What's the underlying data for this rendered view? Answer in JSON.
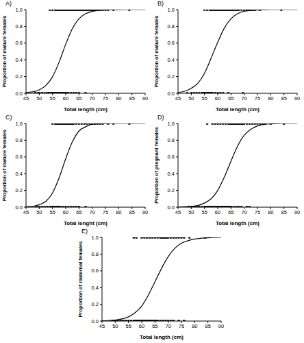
{
  "chart_data": [
    {
      "type": "scatter",
      "title": "A)",
      "x_label": "Total length (cm)",
      "y_label": "Proportion of mature females",
      "xlim": [
        45,
        90
      ],
      "xticks": [
        45,
        50,
        55,
        60,
        65,
        70,
        75,
        80,
        85,
        90
      ],
      "ylim": [
        0,
        1
      ],
      "yticks": [
        {
          "value": 0,
          "label": "0.0"
        },
        {
          "value": 0.2,
          "label": "0.2"
        },
        {
          "value": 0.4,
          "label": "0.4"
        },
        {
          "value": 0.6,
          "label": "0.6"
        },
        {
          "value": 0.8,
          "label": "0.8"
        },
        {
          "value": 1,
          "label": "1.0"
        }
      ],
      "grid": false,
      "points": {
        "color": "#000000",
        "marker": "circle",
        "groups": [
          {
            "y": 0,
            "x": [
              48.5,
              49.5,
              50,
              51,
              52,
              53,
              53.5,
              54,
              54.5,
              55,
              55.5,
              56,
              56.5,
              57,
              57.5,
              58,
              58.5,
              59,
              59.5,
              60,
              60.5,
              61,
              62,
              63,
              64,
              65,
              67.5
            ]
          },
          {
            "y": 1,
            "x": [
              54,
              55,
              56,
              56.5,
              57,
              57.5,
              58,
              58.5,
              59,
              59.5,
              60,
              60.5,
              61,
              61.5,
              62,
              62.5,
              63,
              63.5,
              64,
              64.5,
              65,
              65.5,
              66,
              66.5,
              67,
              67.5,
              68,
              68.5,
              69,
              69.5,
              70,
              70.5,
              71,
              72,
              73,
              74,
              75,
              76,
              78,
              84
            ]
          }
        ]
      },
      "curve": {
        "type": "line",
        "color": "#000000",
        "line_style": "solid",
        "x": [
          45,
          47.5,
          50,
          52.5,
          55,
          57.5,
          60,
          62.5,
          65,
          67.5,
          70,
          72.5,
          75,
          77.5,
          80,
          85,
          90
        ],
        "values": [
          0.01,
          0.017,
          0.041,
          0.093,
          0.198,
          0.372,
          0.587,
          0.773,
          0.891,
          0.951,
          0.979,
          0.991,
          0.996,
          0.998,
          0.999,
          1,
          1
        ]
      }
    },
    {
      "type": "scatter",
      "title": "B)",
      "x_label": "Total length (cm)",
      "y_label": "Proportion of mature females",
      "xlim": [
        45,
        90
      ],
      "xticks": [
        45,
        50,
        55,
        60,
        65,
        70,
        75,
        80,
        85,
        90
      ],
      "ylim": [
        0,
        1
      ],
      "yticks": [
        {
          "value": 0,
          "label": "0.0"
        },
        {
          "value": 0.2,
          "label": "0.2"
        },
        {
          "value": 0.4,
          "label": "0.4"
        },
        {
          "value": 0.6,
          "label": "0.6"
        },
        {
          "value": 0.8,
          "label": "0.8"
        },
        {
          "value": 1,
          "label": "1.0"
        }
      ],
      "grid": false,
      "points": {
        "color": "#000000",
        "marker": "circle",
        "groups": [
          {
            "y": 0,
            "x": [
              48.5,
              50,
              51,
              52,
              53,
              54,
              54.5,
              55,
              55.5,
              56,
              56.5,
              57,
              57.5,
              58,
              59,
              60,
              61,
              62,
              64,
              69.5
            ]
          },
          {
            "y": 1,
            "x": [
              55,
              56,
              57,
              57.5,
              58,
              58.5,
              59,
              59.5,
              60,
              60.5,
              61,
              61.5,
              62,
              62.5,
              63,
              63.5,
              64,
              64.5,
              65,
              65.5,
              66,
              66.5,
              67,
              67.5,
              68,
              69,
              70,
              71,
              72,
              73,
              74,
              76,
              84
            ]
          }
        ]
      },
      "curve": {
        "type": "line",
        "color": "#000000",
        "line_style": "solid",
        "x": [
          45,
          47.5,
          50,
          52.5,
          55,
          57.5,
          60,
          62.5,
          65,
          67.5,
          70,
          72.5,
          75,
          77.5,
          80,
          85,
          90
        ],
        "values": [
          0.01,
          0.025,
          0.06,
          0.12,
          0.24,
          0.42,
          0.61,
          0.78,
          0.89,
          0.95,
          0.98,
          0.99,
          0.995,
          0.998,
          1,
          1,
          1
        ]
      }
    },
    {
      "type": "scatter",
      "title": "C)",
      "x_label": "Total lenght (cm)",
      "y_label": "Proportion of mature females",
      "xlim": [
        45,
        90
      ],
      "xticks": [
        45,
        50,
        55,
        60,
        65,
        70,
        75,
        80,
        85,
        90
      ],
      "ylim": [
        0,
        1
      ],
      "yticks": [
        {
          "value": 0,
          "label": "0.0"
        },
        {
          "value": 0.2,
          "label": "0.2"
        },
        {
          "value": 0.4,
          "label": "0.4"
        },
        {
          "value": 0.6,
          "label": "0.6"
        },
        {
          "value": 0.8,
          "label": "0.8"
        },
        {
          "value": 1,
          "label": "1.0"
        }
      ],
      "grid": false,
      "points": {
        "color": "#000000",
        "marker": "circle",
        "groups": [
          {
            "y": 0,
            "x": [
              49,
              50,
              51,
              52,
              53,
              54,
              54.5,
              55,
              55.5,
              56,
              56.5,
              57,
              57.5,
              58,
              59,
              60,
              61,
              62,
              63,
              64,
              65,
              67.5
            ]
          },
          {
            "y": 1,
            "x": [
              55,
              56,
              56.5,
              57,
              57.5,
              58,
              58.5,
              59,
              59.5,
              60,
              60.5,
              61,
              61.5,
              62,
              62.5,
              63,
              64,
              65,
              66,
              67,
              68,
              69,
              70,
              71,
              72,
              73,
              74,
              76,
              78,
              84
            ]
          }
        ]
      },
      "curve": {
        "type": "line",
        "color": "#000000",
        "line_style": "solid",
        "x": [
          45,
          47.5,
          50,
          52.5,
          55,
          57.5,
          60,
          62.5,
          65,
          67.5,
          70,
          72.5,
          75,
          77.5,
          80,
          85,
          90
        ],
        "values": [
          0.005,
          0.01,
          0.03,
          0.07,
          0.17,
          0.35,
          0.58,
          0.78,
          0.91,
          0.96,
          0.99,
          0.995,
          0.998,
          1,
          1,
          1,
          1
        ]
      }
    },
    {
      "type": "scatter",
      "title": "D)",
      "x_label": "Total length (cm)",
      "y_label": "Proportion of pregnant females",
      "xlim": [
        45,
        90
      ],
      "xticks": [
        45,
        50,
        55,
        60,
        65,
        70,
        75,
        80,
        85,
        90
      ],
      "ylim": [
        0,
        1
      ],
      "yticks": [
        {
          "value": 0,
          "label": "0.0"
        },
        {
          "value": 0.2,
          "label": "0.2"
        },
        {
          "value": 0.4,
          "label": "0.4"
        },
        {
          "value": 0.6,
          "label": "0.6"
        },
        {
          "value": 0.8,
          "label": "0.8"
        },
        {
          "value": 1,
          "label": "1.0"
        }
      ],
      "grid": false,
      "points": {
        "color": "#000000",
        "marker": "circle",
        "groups": [
          {
            "y": 0,
            "x": [
              49,
              50,
              51,
              52,
              53,
              54,
              55,
              55.5,
              56,
              56.5,
              57,
              57.5,
              58,
              58.5,
              59,
              59.5,
              60,
              60.5,
              61,
              61.5,
              62,
              62.5,
              63,
              63.5,
              64,
              64.5,
              65,
              66,
              67,
              68,
              69,
              71,
              72
            ]
          },
          {
            "y": 1,
            "x": [
              56,
              58,
              59,
              60,
              61,
              62,
              63,
              64,
              64.5,
              65,
              65.5,
              66,
              66.5,
              67,
              67.5,
              68,
              68.5,
              69,
              69.5,
              70,
              71,
              72,
              73,
              74,
              75,
              76,
              77,
              78,
              80,
              85
            ]
          }
        ]
      },
      "curve": {
        "type": "line",
        "color": "#000000",
        "line_style": "solid",
        "x": [
          45,
          47.5,
          50,
          52.5,
          55,
          57.5,
          60,
          62.5,
          65,
          67.5,
          70,
          72.5,
          75,
          77.5,
          80,
          85,
          90
        ],
        "values": [
          0.002,
          0.005,
          0.01,
          0.02,
          0.05,
          0.1,
          0.2,
          0.36,
          0.55,
          0.73,
          0.86,
          0.93,
          0.97,
          0.99,
          0.995,
          1,
          1
        ]
      }
    },
    {
      "type": "scatter",
      "title": "E)",
      "x_label": "Total length (cm)",
      "y_label": "Proportion of maternal females",
      "xlim": [
        45,
        90
      ],
      "xticks": [
        45,
        50,
        55,
        60,
        65,
        70,
        75,
        80,
        85,
        90
      ],
      "ylim": [
        0,
        1
      ],
      "yticks": [
        {
          "value": 0,
          "label": "0.0"
        },
        {
          "value": 0.2,
          "label": "0.2"
        },
        {
          "value": 0.4,
          "label": "0.4"
        },
        {
          "value": 0.6,
          "label": "0.6"
        },
        {
          "value": 0.8,
          "label": "0.8"
        },
        {
          "value": 1,
          "label": "1.0"
        }
      ],
      "grid": false,
      "points": {
        "color": "#000000",
        "marker": "circle",
        "groups": [
          {
            "y": 0,
            "x": [
              49,
              50,
              51,
              52,
              53,
              54,
              55,
              56,
              57,
              57.5,
              58,
              58.5,
              59,
              59.5,
              60,
              60.5,
              61,
              61.5,
              62,
              62.5,
              63,
              63.5,
              64,
              64.5,
              65,
              65.5,
              66,
              67,
              68,
              69,
              70,
              71,
              72,
              74,
              76
            ]
          },
          {
            "y": 1,
            "x": [
              57,
              58,
              60,
              61,
              62,
              63,
              64,
              65,
              66,
              67,
              67.5,
              68,
              68.5,
              69,
              69.5,
              70,
              71,
              72,
              73,
              74,
              75,
              76,
              78,
              84
            ]
          }
        ]
      },
      "curve": {
        "type": "line",
        "color": "#000000",
        "line_style": "solid",
        "x": [
          45,
          47.5,
          50,
          52.5,
          55,
          57.5,
          60,
          62.5,
          65,
          67.5,
          70,
          72.5,
          75,
          77.5,
          80,
          85,
          90
        ],
        "values": [
          0.003,
          0.006,
          0.012,
          0.025,
          0.05,
          0.1,
          0.18,
          0.31,
          0.47,
          0.63,
          0.77,
          0.87,
          0.93,
          0.96,
          0.98,
          0.995,
          1
        ]
      }
    }
  ]
}
